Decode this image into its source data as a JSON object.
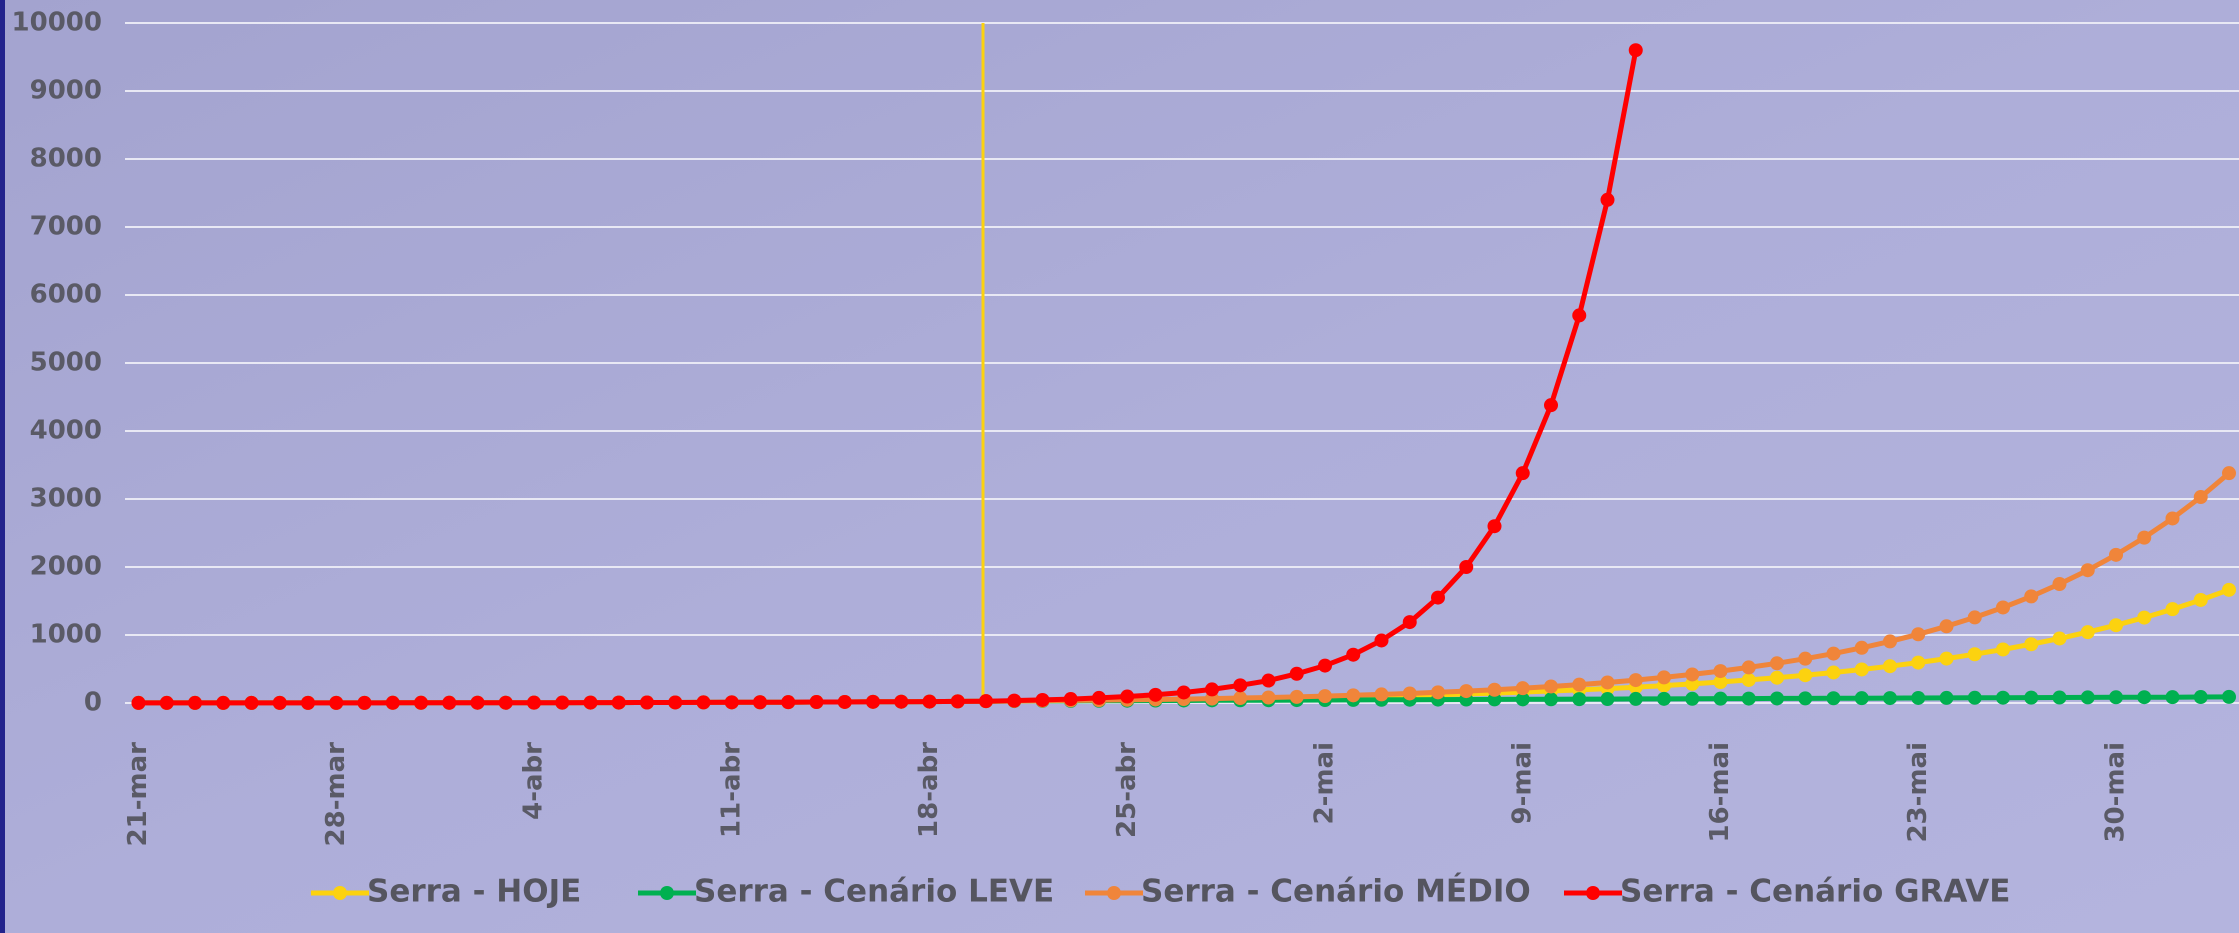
{
  "chart_data": {
    "type": "line",
    "categories": [
      "21-mar",
      null,
      null,
      null,
      null,
      null,
      null,
      "28-mar",
      null,
      null,
      null,
      null,
      null,
      null,
      "4-abr",
      null,
      null,
      null,
      null,
      null,
      null,
      "11-abr",
      null,
      null,
      null,
      null,
      null,
      null,
      "18-abr",
      null,
      null,
      null,
      null,
      null,
      null,
      "25-abr",
      null,
      null,
      null,
      null,
      null,
      null,
      "2-mai",
      null,
      null,
      null,
      null,
      null,
      null,
      "9-mai",
      null,
      null,
      null,
      null,
      null,
      null,
      "16-mai",
      null,
      null,
      null,
      null,
      null,
      null,
      "23-mai",
      null,
      null,
      null,
      null,
      null,
      null,
      "30-mai",
      null,
      null,
      null,
      null
    ],
    "series": [
      {
        "name": "Serra - HOJE",
        "color": "#fcd20f",
        "values": [
          1,
          1,
          1,
          1,
          1,
          2,
          2,
          2,
          2,
          3,
          3,
          3,
          4,
          4,
          5,
          5,
          6,
          6,
          7,
          8,
          9,
          10,
          11,
          12,
          14,
          15,
          17,
          19,
          21,
          24,
          27,
          30,
          33,
          36,
          39,
          43,
          47,
          52,
          57,
          63,
          69,
          76,
          83,
          91,
          100,
          110,
          121,
          133,
          146,
          160,
          176,
          193,
          212,
          233,
          256,
          281,
          309,
          339,
          372,
          409,
          449,
          493,
          541,
          594,
          653,
          717,
          787,
          864,
          949,
          1042,
          1144,
          1256,
          1380,
          1515,
          1664
        ]
      },
      {
        "name": "Serra - Cenário LEVE",
        "color": "#00b050",
        "values": [
          1,
          1,
          1,
          1,
          1,
          2,
          2,
          2,
          2,
          3,
          3,
          3,
          4,
          4,
          5,
          5,
          6,
          6,
          7,
          8,
          9,
          10,
          11,
          12,
          14,
          15,
          17,
          19,
          21,
          24,
          27,
          28,
          30,
          31,
          33,
          34,
          36,
          37,
          39,
          40,
          41,
          43,
          44,
          46,
          47,
          48,
          50,
          51,
          53,
          54,
          55,
          57,
          58,
          60,
          61,
          62,
          64,
          65,
          67,
          68,
          70,
          71,
          72,
          74,
          75,
          77,
          78,
          79,
          81,
          82,
          84,
          85,
          86,
          88,
          90
        ]
      },
      {
        "name": "Serra - Cenário MÉDIO",
        "color": "#f0853a",
        "values": [
          1,
          1,
          1,
          1,
          1,
          2,
          2,
          2,
          2,
          3,
          3,
          3,
          4,
          4,
          5,
          5,
          6,
          6,
          7,
          8,
          9,
          10,
          11,
          12,
          14,
          15,
          17,
          19,
          21,
          24,
          27,
          30,
          34,
          38,
          42,
          47,
          52,
          58,
          65,
          73,
          81,
          90,
          101,
          113,
          126,
          140,
          157,
          175,
          195,
          218,
          243,
          271,
          302,
          337,
          377,
          420,
          469,
          523,
          584,
          652,
          727,
          812,
          906,
          1011,
          1128,
          1259,
          1405,
          1568,
          1750,
          1953,
          2179,
          2432,
          2714,
          3029,
          3380
        ]
      },
      {
        "name": "Serra - Cenário GRAVE",
        "color": "#ff0000",
        "values": [
          1,
          1,
          1,
          1,
          1,
          2,
          2,
          2,
          2,
          3,
          3,
          3,
          4,
          4,
          5,
          5,
          6,
          6,
          7,
          8,
          9,
          10,
          11,
          12,
          14,
          15,
          17,
          19,
          21,
          24,
          27,
          35,
          45,
          58,
          75,
          95,
          120,
          155,
          200,
          260,
          330,
          430,
          550,
          710,
          920,
          1190,
          1550,
          2000,
          2600,
          3380,
          4380,
          5700,
          7400,
          9600,
          null,
          null,
          null,
          null,
          null,
          null,
          null,
          null,
          null,
          null,
          null,
          null,
          null,
          null,
          null,
          null,
          null,
          null,
          null,
          null,
          null
        ]
      }
    ],
    "ylim": [
      0,
      10000
    ],
    "yticks": [
      0,
      1000,
      2000,
      3000,
      4000,
      5000,
      6000,
      7000,
      8000,
      9000,
      10000
    ],
    "grid": true
  }
}
